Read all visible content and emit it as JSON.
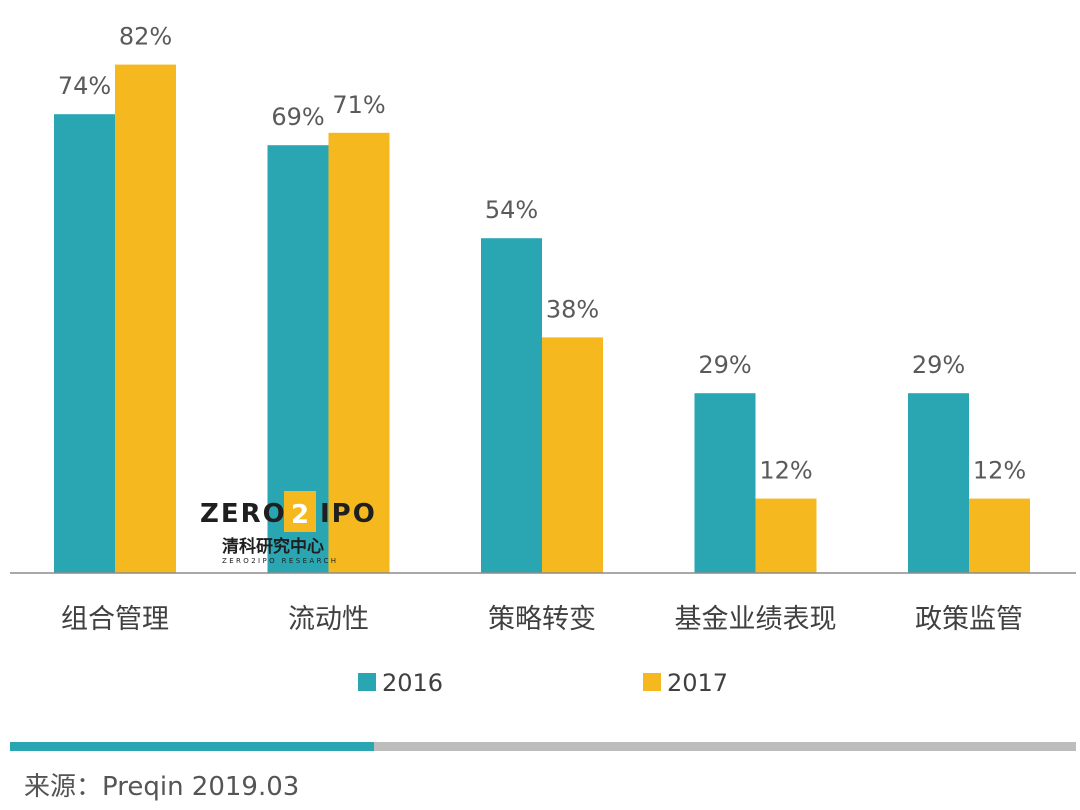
{
  "chart_data": {
    "type": "bar",
    "categories": [
      "组合管理",
      "流动性",
      "策略转变",
      "基金业绩表现",
      "政策监管"
    ],
    "series": [
      {
        "name": "2016",
        "values": [
          74,
          69,
          54,
          29,
          29
        ],
        "color": "#2aa6b3"
      },
      {
        "name": "2017",
        "values": [
          82,
          71,
          38,
          12,
          12
        ],
        "color": "#f5b91f"
      }
    ],
    "value_labels": {
      "2016": [
        "74%",
        "69%",
        "54%",
        "29%",
        "29%"
      ],
      "2017": [
        "82%",
        "71%",
        "38%",
        "12%",
        "12%"
      ]
    },
    "ylim": [
      0,
      100
    ],
    "grid": false,
    "legend_position": "bottom"
  },
  "watermark": {
    "logo_text_left": "ZERO",
    "logo_digit": "2",
    "logo_text_right": "IPO",
    "logo_cn": "清科研究中心",
    "logo_sub": "ZERO2IPO RESEARCH"
  },
  "footer": {
    "source": "来源：Preqin 2019.03",
    "accent_color": "#2aa6b3",
    "rule_color": "#bdbdbd"
  }
}
